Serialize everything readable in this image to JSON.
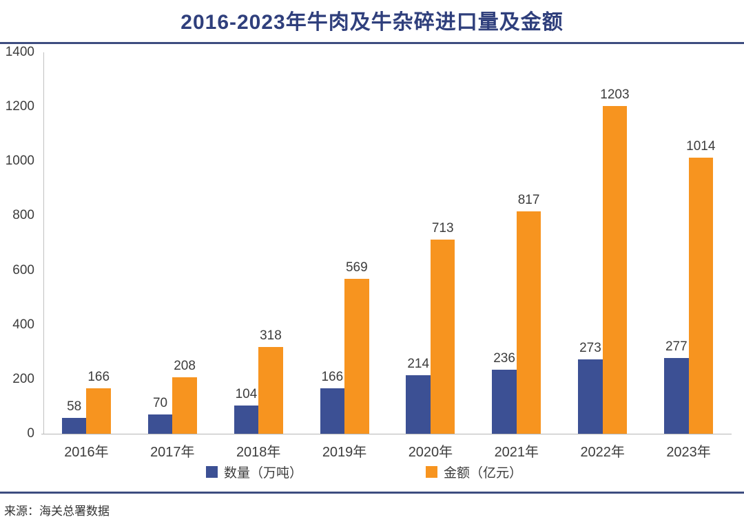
{
  "title": "2016-2023年牛肉及牛杂碎进口量及金额",
  "source": "来源：海关总署数据",
  "colors": {
    "title": "#2F3F7C",
    "divider": "#3D4D80",
    "volume_bar": "#3C5094",
    "amount_bar": "#F7941F",
    "axis_line": "#C0C0C0",
    "label_text": "#3C3C3C"
  },
  "chart_data": {
    "type": "bar",
    "title": "2016-2023年牛肉及牛杂碎进口量及金额",
    "categories": [
      "2016年",
      "2017年",
      "2018年",
      "2019年",
      "2020年",
      "2021年",
      "2022年",
      "2023年"
    ],
    "series": [
      {
        "name": "数量（万吨）",
        "color": "#3C5094",
        "values": [
          58,
          70,
          104,
          166,
          214,
          236,
          273,
          277
        ]
      },
      {
        "name": "金额（亿元）",
        "color": "#F7941F",
        "values": [
          166,
          208,
          318,
          569,
          713,
          817,
          1203,
          1014
        ]
      }
    ],
    "xlabel": "",
    "ylabel": "",
    "ylim": [
      0,
      1400
    ],
    "ytick_interval": 200,
    "grid": false,
    "legend_position": "bottom",
    "value_labels": true
  }
}
